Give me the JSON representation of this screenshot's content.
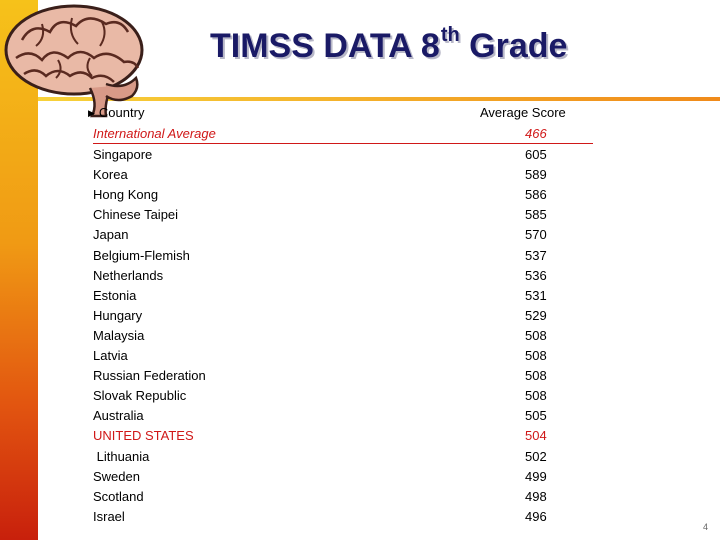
{
  "slide": {
    "title_main": "TIMSS DATA 8",
    "title_sup": "th",
    "title_end": " Grade",
    "page_number": "4"
  },
  "columns": {
    "country": "Country",
    "score": "Average Score"
  },
  "colors": {
    "title": "#1a1a66",
    "highlight": "#d01818",
    "sidebar_top": "#f6c21a",
    "sidebar_bottom": "#c8200c"
  },
  "icons": [
    "brain-icon",
    "bullet-triangle-icon"
  ],
  "rows": [
    {
      "country": "International Average",
      "score": "466"
    },
    {
      "country": "Singapore",
      "score": "605"
    },
    {
      "country": "Korea",
      "score": "589"
    },
    {
      "country": "Hong Kong",
      "score": "586"
    },
    {
      "country": "Chinese Taipei",
      "score": "585"
    },
    {
      "country": "Japan",
      "score": "570"
    },
    {
      "country": "Belgium-Flemish",
      "score": "537"
    },
    {
      "country": "Netherlands",
      "score": "536"
    },
    {
      "country": "Estonia",
      "score": "531"
    },
    {
      "country": "Hungary",
      "score": "529"
    },
    {
      "country": "Malaysia",
      "score": "508"
    },
    {
      "country": "Latvia",
      "score": "508"
    },
    {
      "country": "Russian Federation",
      "score": "508"
    },
    {
      "country": "Slovak Republic",
      "score": "508"
    },
    {
      "country": "Australia",
      "score": "505"
    },
    {
      "country": "UNITED STATES",
      "score": "504"
    },
    {
      "country": " Lithuania",
      "score": "502"
    },
    {
      "country": "Sweden",
      "score": "499"
    },
    {
      "country": "Scotland",
      "score": "498"
    },
    {
      "country": "Israel",
      "score": "496"
    }
  ]
}
